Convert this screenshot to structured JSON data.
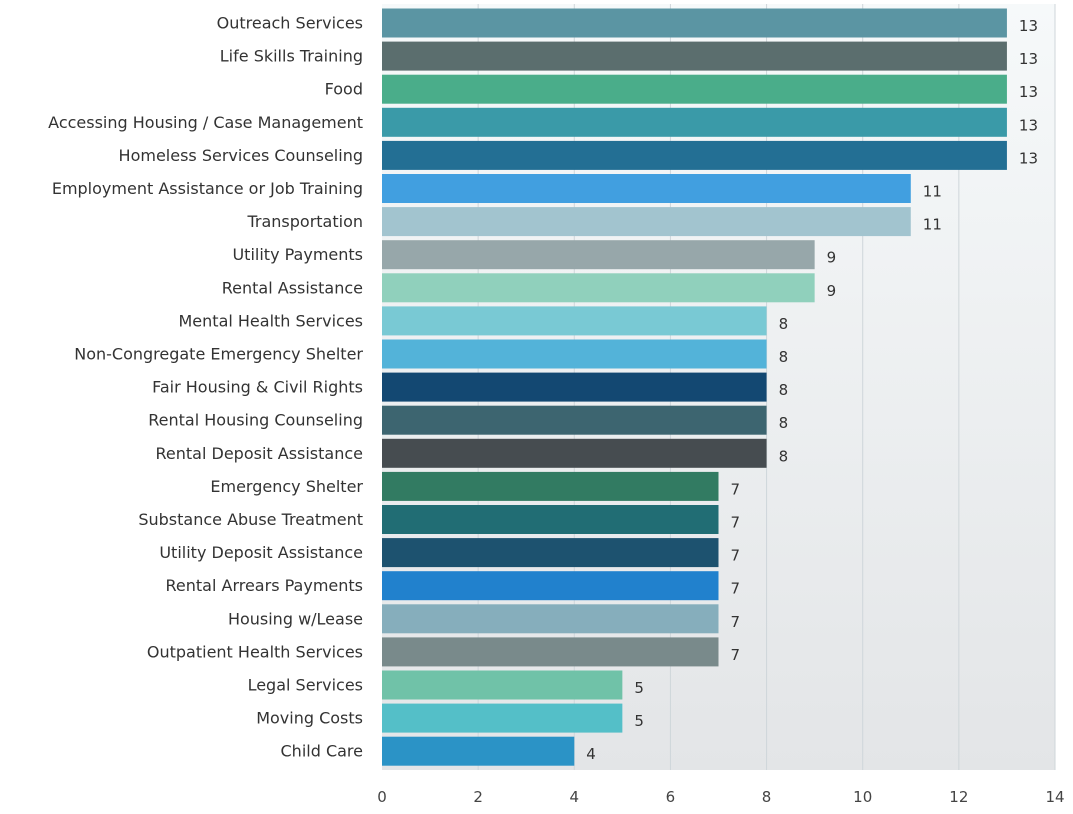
{
  "chart_data": {
    "type": "bar",
    "orientation": "horizontal",
    "categories": [
      "Outreach Services",
      "Life Skills Training",
      "Food",
      "Accessing Housing / Case Management",
      "Homeless Services Counseling",
      "Employment Assistance or Job Training",
      "Transportation",
      "Utility Payments",
      "Rental Assistance",
      "Mental Health Services",
      "Non-Congregate Emergency Shelter",
      "Fair Housing & Civil Rights",
      "Rental Housing Counseling",
      "Rental Deposit Assistance",
      "Emergency Shelter",
      "Substance Abuse Treatment",
      "Utility Deposit Assistance",
      "Rental Arrears Payments",
      "Housing w/Lease",
      "Outpatient Health Services",
      "Legal Services",
      "Moving Costs",
      "Child Care"
    ],
    "values": [
      13,
      13,
      13,
      13,
      13,
      11,
      11,
      9,
      9,
      8,
      8,
      8,
      8,
      8,
      7,
      7,
      7,
      7,
      7,
      7,
      5,
      5,
      4
    ],
    "colors": [
      "#5b95a3",
      "#5b6e6e",
      "#4aad8a",
      "#3a9aa8",
      "#236f94",
      "#419fe0",
      "#a2c4cf",
      "#97a7aa",
      "#90d0bc",
      "#79c9d4",
      "#53b3d9",
      "#134872",
      "#3d6570",
      "#464c50",
      "#327b62",
      "#216d74",
      "#1d526f",
      "#2181cd",
      "#86aebc",
      "#798a8b",
      "#70c2a8",
      "#54bfc8",
      "#2b93c6"
    ],
    "xlim": [
      0,
      14
    ],
    "xticks": [
      0,
      2,
      4,
      6,
      8,
      10,
      12,
      14
    ],
    "grid": true,
    "background": [
      "#f6f9fa",
      "#e3e5e7"
    ],
    "title": "",
    "xlabel": "",
    "ylabel": ""
  }
}
